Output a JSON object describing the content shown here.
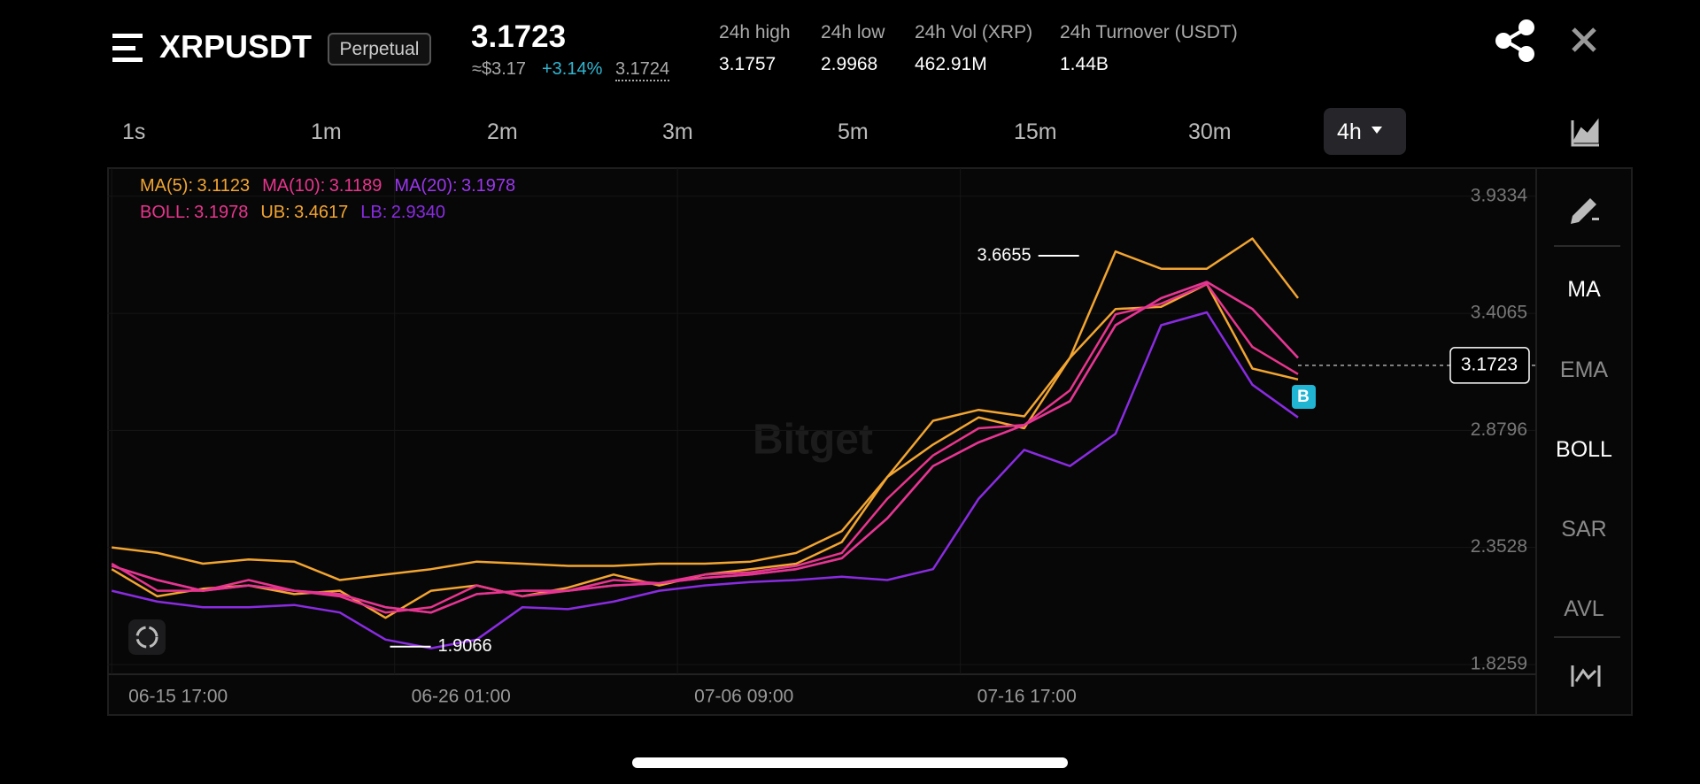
{
  "header": {
    "symbol": "XRPUSDT",
    "contract": "Perpetual",
    "price": "3.1723",
    "approx": "≈$3.17",
    "change": "+3.14%",
    "mark_price": "3.1724",
    "stats": [
      {
        "label": "24h high",
        "value": "3.1757"
      },
      {
        "label": "24h low",
        "value": "2.9968"
      },
      {
        "label": "24h Vol (XRP)",
        "value": "462.91M"
      },
      {
        "label": "24h Turnover (USDT)",
        "value": "1.44B"
      }
    ]
  },
  "timeframes": [
    "1s",
    "1m",
    "2m",
    "3m",
    "5m",
    "15m",
    "30m",
    "4h"
  ],
  "indicators": [
    "MA",
    "EMA",
    "BOLL",
    "SAR",
    "AVL"
  ],
  "watermark": "Bitget",
  "buy_marker": "B",
  "chart_data": {
    "type": "line",
    "x": [
      0,
      10,
      20,
      30,
      40,
      50,
      60,
      70,
      80,
      90,
      100,
      110,
      120,
      130,
      140,
      150,
      160,
      170,
      180,
      190,
      200,
      210,
      220,
      230,
      240,
      250,
      260
    ],
    "xlim": [
      -1,
      312
    ],
    "xticks": [
      {
        "value": 0,
        "label": "06-15 17:00"
      },
      {
        "value": 62,
        "label": "06-26 01:00"
      },
      {
        "value": 124,
        "label": "07-06 09:00"
      },
      {
        "value": 186,
        "label": "07-16 17:00"
      }
    ],
    "ylim": [
      1.782,
      4.06
    ],
    "yticks": [
      1.8259,
      2.3528,
      2.8796,
      3.4065,
      3.9334
    ],
    "grid": true,
    "series": [
      {
        "name": "MA(5):",
        "current": "3.1123",
        "color": "#f2a531",
        "values": [
          2.255,
          2.133,
          2.167,
          2.182,
          2.143,
          2.158,
          2.036,
          2.158,
          2.182,
          2.133,
          2.172,
          2.231,
          2.182,
          2.231,
          2.255,
          2.28,
          2.377,
          2.67,
          2.816,
          2.938,
          2.889,
          3.206,
          3.426,
          3.436,
          3.538,
          3.158,
          3.109
        ]
      },
      {
        "name": "MA(10):",
        "current": "3.1189",
        "color": "#e8358d",
        "values": [
          2.28,
          2.158,
          2.158,
          2.206,
          2.158,
          2.133,
          2.06,
          2.084,
          2.182,
          2.133,
          2.158,
          2.206,
          2.192,
          2.231,
          2.241,
          2.27,
          2.328,
          2.572,
          2.767,
          2.889,
          2.904,
          3.06,
          3.402,
          3.45,
          3.538,
          3.255,
          3.133
        ]
      },
      {
        "name": "MA(20):",
        "current": "3.1978",
        "color": "#9b36ee",
        "values": [
          2.27,
          2.206,
          2.158,
          2.182,
          2.158,
          2.143,
          2.084,
          2.06,
          2.143,
          2.158,
          2.158,
          2.182,
          2.192,
          2.216,
          2.231,
          2.255,
          2.304,
          2.484,
          2.719,
          2.826,
          2.904,
          3.011,
          3.353,
          3.475,
          3.548,
          3.426,
          3.206
        ]
      },
      {
        "name": "BOLL:",
        "current": "3.1978",
        "color": "#e8358d",
        "values": [
          2.27,
          2.206,
          2.158,
          2.182,
          2.158,
          2.143,
          2.084,
          2.06,
          2.143,
          2.158,
          2.158,
          2.182,
          2.192,
          2.216,
          2.231,
          2.255,
          2.304,
          2.484,
          2.719,
          2.826,
          2.904,
          3.011,
          3.353,
          3.475,
          3.548,
          3.426,
          3.206
        ]
      },
      {
        "name": "UB:",
        "current": "3.4617",
        "color": "#f2a531",
        "values": [
          2.353,
          2.328,
          2.28,
          2.299,
          2.289,
          2.206,
          2.231,
          2.255,
          2.289,
          2.28,
          2.27,
          2.27,
          2.28,
          2.28,
          2.289,
          2.328,
          2.426,
          2.67,
          2.923,
          2.972,
          2.943,
          3.206,
          3.685,
          3.607,
          3.607,
          3.743,
          3.475
        ]
      },
      {
        "name": "LB:",
        "current": "2.9340",
        "color": "#8a2be2",
        "values": [
          2.158,
          2.109,
          2.084,
          2.084,
          2.094,
          2.06,
          1.938,
          1.899,
          1.938,
          2.084,
          2.075,
          2.109,
          2.158,
          2.182,
          2.197,
          2.206,
          2.221,
          2.206,
          2.255,
          2.572,
          2.792,
          2.719,
          2.865,
          3.353,
          3.411,
          3.085,
          2.938
        ]
      }
    ],
    "high": {
      "x": 212,
      "value": 3.6655
    },
    "low": {
      "x": 61,
      "value": 1.9066
    },
    "last_price": {
      "x": 260,
      "value": 3.1723
    }
  }
}
